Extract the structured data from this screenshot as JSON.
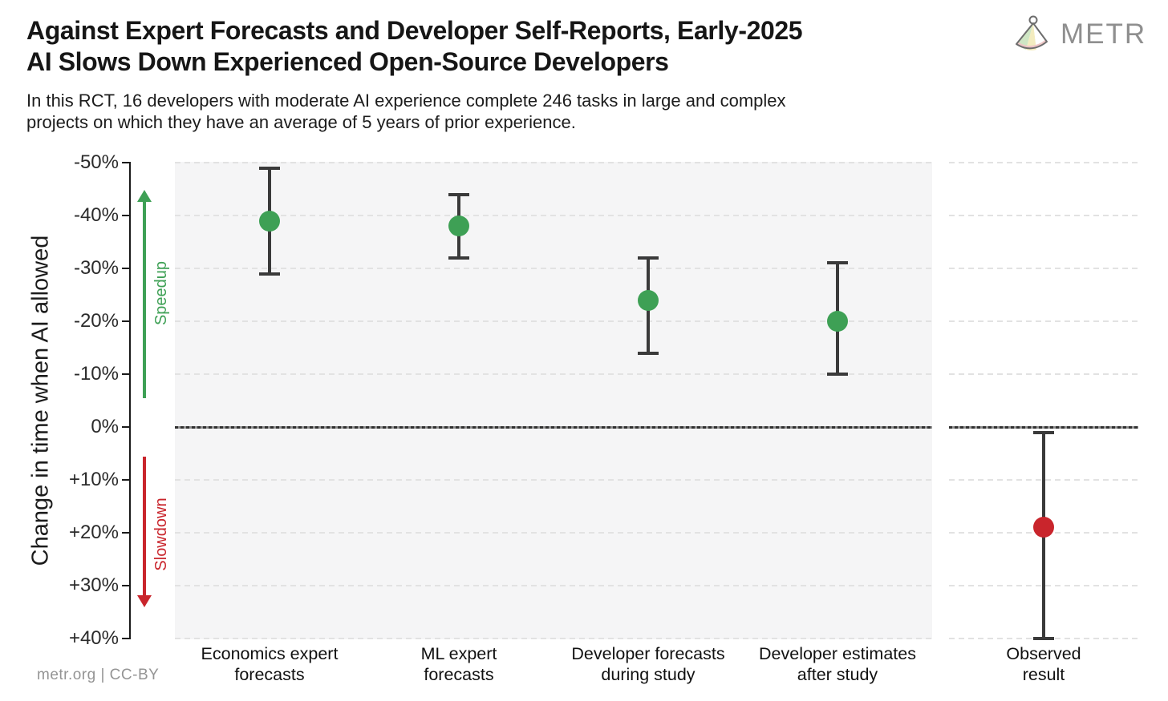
{
  "header": {
    "title_line1": "Against Expert Forecasts and Developer Self-Reports, Early-2025",
    "title_line2": "AI Slows Down Experienced Open-Source Developers",
    "subtitle_line1": "In this RCT, 16 developers with moderate AI experience complete 246 tasks in large and complex",
    "subtitle_line2": "projects on which they have an average of 5 years of prior experience."
  },
  "logo": {
    "text": "METR"
  },
  "chart_data": {
    "type": "scatter",
    "title": "Against Expert Forecasts and Developer Self-Reports, Early-2025 AI Slows Down Experienced Open-Source Developers",
    "ylabel": "Change in time when AI allowed",
    "ylim": [
      -50,
      40
    ],
    "y_inverted_axis": true,
    "grid": true,
    "y_ticks": [
      {
        "v": -50,
        "label": "-50%"
      },
      {
        "v": -40,
        "label": "-40%"
      },
      {
        "v": -30,
        "label": "-30%"
      },
      {
        "v": -20,
        "label": "-20%"
      },
      {
        "v": -10,
        "label": "-10%"
      },
      {
        "v": 0,
        "label": "0%"
      },
      {
        "v": 10,
        "label": "+10%"
      },
      {
        "v": 20,
        "label": "+20%"
      },
      {
        "v": 30,
        "label": "+30%"
      },
      {
        "v": 40,
        "label": "+40%"
      }
    ],
    "annotations": {
      "speedup": "Speedup",
      "slowdown": "Slowdown"
    },
    "colors": {
      "speedup_green": "#3EA055",
      "slowdown_red": "#C9252C",
      "whisker": "#3a3a3a"
    },
    "points": [
      {
        "category": "Economics expert forecasts",
        "label_lines": [
          "Economics expert",
          "forecasts"
        ],
        "value": -39,
        "ci": [
          -49,
          -29
        ],
        "color": "#3EA055",
        "panel": "left"
      },
      {
        "category": "ML expert forecasts",
        "label_lines": [
          "ML expert",
          "forecasts"
        ],
        "value": -38,
        "ci": [
          -44,
          -32
        ],
        "color": "#3EA055",
        "panel": "left"
      },
      {
        "category": "Developer forecasts during study",
        "label_lines": [
          "Developer forecasts",
          "during study"
        ],
        "value": -24,
        "ci": [
          -32,
          -14
        ],
        "color": "#3EA055",
        "panel": "left"
      },
      {
        "category": "Developer estimates after study",
        "label_lines": [
          "Developer estimates",
          "after study"
        ],
        "value": -20,
        "ci": [
          -31,
          -10
        ],
        "color": "#3EA055",
        "panel": "left"
      },
      {
        "category": "Observed result",
        "label_lines": [
          "Observed",
          "result"
        ],
        "value": 19,
        "ci": [
          1,
          40
        ],
        "color": "#C9252C",
        "panel": "right"
      }
    ]
  },
  "footer": {
    "credit": "metr.org  |  CC-BY"
  }
}
